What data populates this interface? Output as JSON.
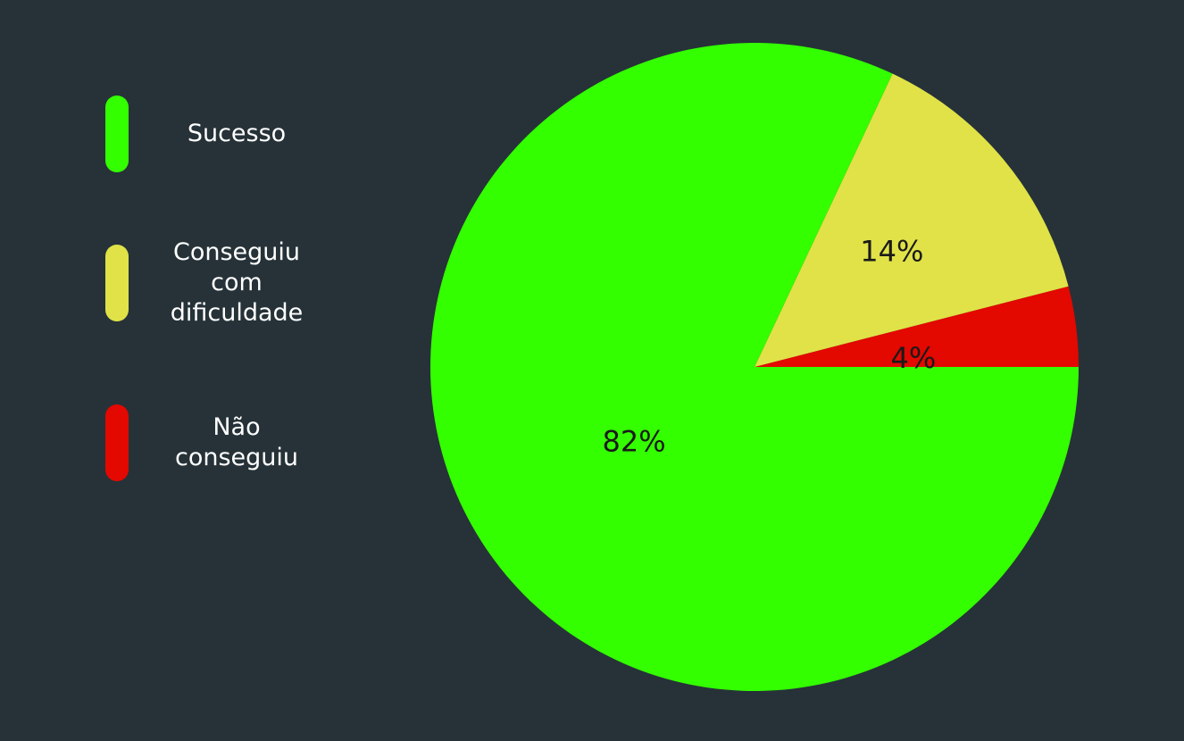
{
  "chart_data": {
    "type": "pie",
    "labels": [
      "Sucesso",
      "Conseguiu com dificuldade",
      "Não conseguiu"
    ],
    "values": [
      82,
      14,
      4
    ],
    "value_labels": [
      "82%",
      "14%",
      "4%"
    ],
    "colors": [
      "#33ff00",
      "#e0e247",
      "#e30800"
    ],
    "legend_position": "left"
  },
  "legend": {
    "items": [
      {
        "label": "Sucesso",
        "color": "#33ff00"
      },
      {
        "label": "Conseguiu com dificuldade",
        "color": "#e0e247"
      },
      {
        "label": "Não conseguiu",
        "color": "#e30800"
      }
    ]
  }
}
